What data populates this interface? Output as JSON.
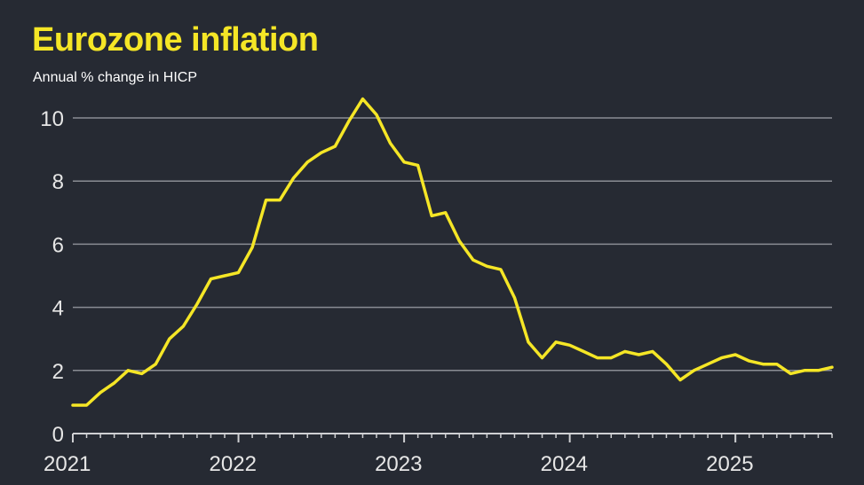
{
  "header": {
    "title": "Eurozone inflation",
    "subtitle": "Annual % change in HICP"
  },
  "colors": {
    "background": "#262a33",
    "line": "#f5e626",
    "title": "#f5e626",
    "text": "#ffffff",
    "tick_text": "#e6e6e6",
    "grid": "#8a8d94",
    "axis": "#cfd0d3"
  },
  "chart_data": {
    "type": "line",
    "title": "Eurozone inflation",
    "subtitle": "Annual % change in HICP",
    "xlabel": "",
    "ylabel": "",
    "ylim": [
      0,
      10
    ],
    "y_ticks": [
      0,
      2,
      4,
      6,
      8,
      10
    ],
    "x_ticks": [
      "2021",
      "2022",
      "2023",
      "2024",
      "2025"
    ],
    "grid": true,
    "x_start": "2021-01",
    "x_end": "2025-08",
    "series": [
      {
        "name": "",
        "x": [
          "2021-01",
          "2021-02",
          "2021-03",
          "2021-04",
          "2021-05",
          "2021-06",
          "2021-07",
          "2021-08",
          "2021-09",
          "2021-10",
          "2021-11",
          "2021-12",
          "2022-01",
          "2022-02",
          "2022-03",
          "2022-04",
          "2022-05",
          "2022-06",
          "2022-07",
          "2022-08",
          "2022-09",
          "2022-10",
          "2022-11",
          "2022-12",
          "2023-01",
          "2023-02",
          "2023-03",
          "2023-04",
          "2023-05",
          "2023-06",
          "2023-07",
          "2023-08",
          "2023-09",
          "2023-10",
          "2023-11",
          "2023-12",
          "2024-01",
          "2024-02",
          "2024-03",
          "2024-04",
          "2024-05",
          "2024-06",
          "2024-07",
          "2024-08",
          "2024-09",
          "2024-10",
          "2024-11",
          "2024-12",
          "2025-01",
          "2025-02",
          "2025-03",
          "2025-04",
          "2025-05",
          "2025-06",
          "2025-07",
          "2025-08"
        ],
        "values": [
          0.9,
          0.9,
          1.3,
          1.6,
          2.0,
          1.9,
          2.2,
          3.0,
          3.4,
          4.1,
          4.9,
          5.0,
          5.1,
          5.9,
          7.4,
          7.4,
          8.1,
          8.6,
          8.9,
          9.1,
          9.9,
          10.6,
          10.1,
          9.2,
          8.6,
          8.5,
          6.9,
          7.0,
          6.1,
          5.5,
          5.3,
          5.2,
          4.3,
          2.9,
          2.4,
          2.9,
          2.8,
          2.6,
          2.4,
          2.4,
          2.6,
          2.5,
          2.6,
          2.2,
          1.7,
          2.0,
          2.2,
          2.4,
          2.5,
          2.3,
          2.2,
          2.2,
          1.9,
          2.0,
          2.0,
          2.1
        ]
      }
    ]
  }
}
